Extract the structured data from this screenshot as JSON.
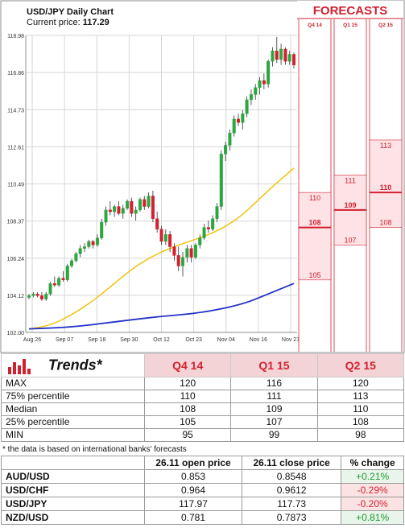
{
  "chart_data": {
    "type": "candlestick",
    "title": "USD/JPY Daily Chart",
    "current_price_label": "Current price:",
    "current_price": "117.29",
    "y_ticks": [
      "118.98",
      "116.86",
      "114.73",
      "112.61",
      "110.49",
      "108.37",
      "106.24",
      "104.12",
      "102.00"
    ],
    "ylim": [
      102.0,
      118.98
    ],
    "x_ticks": [
      "Aug 26",
      "Sep 07",
      "Sep 18",
      "Sep 30",
      "Oct 12",
      "Oct 23",
      "Nov 04",
      "Nov 16",
      "Nov 27"
    ],
    "candles": [
      [
        104.0,
        104.2,
        103.9,
        104.1
      ],
      [
        104.1,
        104.3,
        104.0,
        104.2
      ],
      [
        104.2,
        104.3,
        104.0,
        104.1
      ],
      [
        104.1,
        104.3,
        103.8,
        103.9
      ],
      [
        103.9,
        104.3,
        103.8,
        104.2
      ],
      [
        104.2,
        104.9,
        104.1,
        104.8
      ],
      [
        104.8,
        105.2,
        104.6,
        104.7
      ],
      [
        104.7,
        105.2,
        104.6,
        105.1
      ],
      [
        105.1,
        105.5,
        104.9,
        105.0
      ],
      [
        105.0,
        105.9,
        104.9,
        105.8
      ],
      [
        105.8,
        106.2,
        105.7,
        106.1
      ],
      [
        106.1,
        106.6,
        106.0,
        106.5
      ],
      [
        106.5,
        107.0,
        106.3,
        106.8
      ],
      [
        106.8,
        107.1,
        106.6,
        106.9
      ],
      [
        106.9,
        107.3,
        106.8,
        107.2
      ],
      [
        107.2,
        107.3,
        106.8,
        107.0
      ],
      [
        107.0,
        107.6,
        106.9,
        107.4
      ],
      [
        107.4,
        108.5,
        107.3,
        108.3
      ],
      [
        108.3,
        109.2,
        108.1,
        109.0
      ],
      [
        109.0,
        109.5,
        108.7,
        108.9
      ],
      [
        108.9,
        109.3,
        108.6,
        109.2
      ],
      [
        109.2,
        109.5,
        108.7,
        108.8
      ],
      [
        108.8,
        109.3,
        108.5,
        109.1
      ],
      [
        109.1,
        109.6,
        109.0,
        109.5
      ],
      [
        109.5,
        109.7,
        108.6,
        108.8
      ],
      [
        108.8,
        109.2,
        108.4,
        109.0
      ],
      [
        109.0,
        109.7,
        108.9,
        109.6
      ],
      [
        109.6,
        109.8,
        109.0,
        109.2
      ],
      [
        109.2,
        110.0,
        109.1,
        109.8
      ],
      [
        109.8,
        110.1,
        108.3,
        108.5
      ],
      [
        108.5,
        108.9,
        107.7,
        107.9
      ],
      [
        107.9,
        108.1,
        107.0,
        107.2
      ],
      [
        107.2,
        107.9,
        107.0,
        107.6
      ],
      [
        107.6,
        107.8,
        106.6,
        106.9
      ],
      [
        106.9,
        107.1,
        106.1,
        106.4
      ],
      [
        106.4,
        106.9,
        105.5,
        105.8
      ],
      [
        105.8,
        106.6,
        105.2,
        106.3
      ],
      [
        106.3,
        107.0,
        106.0,
        106.8
      ],
      [
        106.8,
        107.0,
        106.0,
        106.3
      ],
      [
        106.3,
        107.1,
        106.2,
        107.0
      ],
      [
        107.0,
        107.6,
        106.8,
        107.4
      ],
      [
        107.4,
        108.2,
        107.3,
        108.0
      ],
      [
        108.0,
        108.4,
        107.7,
        107.9
      ],
      [
        107.9,
        108.7,
        107.8,
        108.5
      ],
      [
        108.5,
        109.4,
        108.3,
        109.2
      ],
      [
        109.2,
        112.4,
        109.0,
        112.2
      ],
      [
        112.2,
        112.9,
        111.8,
        112.7
      ],
      [
        112.7,
        113.6,
        112.4,
        113.4
      ],
      [
        113.4,
        114.4,
        113.2,
        114.2
      ],
      [
        114.2,
        114.5,
        113.8,
        114.0
      ],
      [
        114.0,
        114.7,
        113.6,
        114.5
      ],
      [
        114.5,
        115.5,
        114.3,
        115.3
      ],
      [
        115.3,
        115.9,
        115.0,
        115.6
      ],
      [
        115.6,
        116.2,
        115.3,
        116.0
      ],
      [
        116.0,
        116.6,
        115.6,
        116.4
      ],
      [
        116.4,
        116.8,
        115.9,
        116.2
      ],
      [
        116.2,
        117.6,
        116.0,
        117.5
      ],
      [
        117.5,
        118.3,
        117.2,
        118.1
      ],
      [
        118.1,
        118.9,
        117.4,
        117.6
      ],
      [
        117.6,
        118.5,
        117.3,
        118.2
      ],
      [
        118.2,
        118.3,
        117.3,
        117.5
      ],
      [
        117.5,
        118.1,
        117.3,
        117.9
      ],
      [
        117.9,
        118.0,
        117.1,
        117.29
      ]
    ],
    "ma_short": [
      [
        0,
        102.2
      ],
      [
        5,
        102.4
      ],
      [
        10,
        103.0
      ],
      [
        15,
        103.8
      ],
      [
        20,
        104.8
      ],
      [
        25,
        105.8
      ],
      [
        30,
        106.5
      ],
      [
        35,
        107.0
      ],
      [
        40,
        107.4
      ],
      [
        45,
        107.9
      ],
      [
        50,
        108.7
      ],
      [
        55,
        109.9
      ],
      [
        62,
        111.4
      ]
    ],
    "ma_long": [
      [
        0,
        102.2
      ],
      [
        10,
        102.3
      ],
      [
        20,
        102.6
      ],
      [
        30,
        102.9
      ],
      [
        40,
        103.1
      ],
      [
        50,
        103.6
      ],
      [
        56,
        104.2
      ],
      [
        62,
        104.8
      ]
    ],
    "forecast_header": "FORECASTS",
    "forecasts": [
      {
        "label": "Q4 14",
        "max_label": "110",
        "median_label": "108",
        "min_label": "105",
        "max": 110,
        "median": 108,
        "min": 105
      },
      {
        "label": "Q1 15",
        "max_label": "111",
        "median_label": "109",
        "min_label": "107",
        "max": 111,
        "median": 109,
        "min": 107
      },
      {
        "label": "Q2 15",
        "max_label": "113",
        "median_label": "110",
        "min_label": "108",
        "max": 113,
        "median": 110,
        "min": 108
      }
    ],
    "colors": {
      "up": "#2ca73f",
      "down": "#d2202f",
      "ma_short": "#f5c518",
      "ma_long": "#2430c8",
      "forecast": "#d2202f",
      "forecast_fill": "#fde3e6"
    }
  },
  "trends": {
    "title": "Trends*",
    "columns": [
      "Q4 14",
      "Q1 15",
      "Q2 15"
    ],
    "rows": [
      {
        "label": "MAX",
        "values": [
          "120",
          "116",
          "120"
        ]
      },
      {
        "label": "75% percentile",
        "values": [
          "110",
          "111",
          "113"
        ]
      },
      {
        "label": "Median",
        "values": [
          "108",
          "109",
          "110"
        ]
      },
      {
        "label": "25% percentile",
        "values": [
          "105",
          "107",
          "108"
        ]
      },
      {
        "label": "MIN",
        "values": [
          "95",
          "99",
          "98"
        ]
      }
    ],
    "footnote": "* the data is based on international banks' forecasts"
  },
  "fx": {
    "headers": [
      "",
      "26.11 open price",
      "26.11 close price",
      "% change"
    ],
    "rows": [
      {
        "pair": "AUD/USD",
        "open": "0.853",
        "close": "0.8548",
        "change": "+0.21%",
        "dir": "pos"
      },
      {
        "pair": "USD/CHF",
        "open": "0.964",
        "close": "0.9612",
        "change": "-0.29%",
        "dir": "neg"
      },
      {
        "pair": "USD/JPY",
        "open": "117.97",
        "close": "117.73",
        "change": "-0.20%",
        "dir": "neg"
      },
      {
        "pair": "NZD/USD",
        "open": "0.781",
        "close": "0.7873",
        "change": "+0.81%",
        "dir": "pos"
      }
    ]
  }
}
